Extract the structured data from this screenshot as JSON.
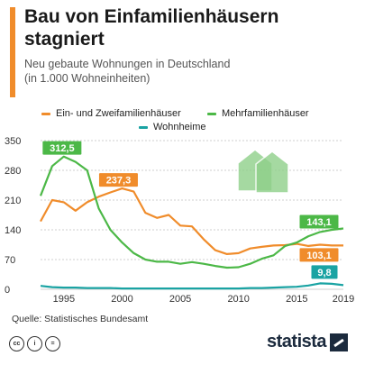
{
  "header": {
    "title": "Bau von Einfamilienhäusern stagniert",
    "subtitle_line1": "Neu gebaute Wohnungen in Deutschland",
    "subtitle_line2": "(in 1.000 Wohneinheiten)"
  },
  "source": "Quelle: Statistisches Bundesamt",
  "brand": "statista",
  "chart_data": {
    "type": "line",
    "x": [
      1993,
      1994,
      1995,
      1996,
      1997,
      1998,
      1999,
      2000,
      2001,
      2002,
      2003,
      2004,
      2005,
      2006,
      2007,
      2008,
      2009,
      2010,
      2011,
      2012,
      2013,
      2014,
      2015,
      2016,
      2017,
      2018,
      2019
    ],
    "series": [
      {
        "name": "Ein- und Zweifamilienhäuser",
        "color": "#f08c2b",
        "values": [
          160,
          210,
          205,
          185,
          205,
          218,
          228,
          237.3,
          230,
          180,
          168,
          175,
          150,
          148,
          118,
          92,
          83,
          85,
          96,
          100,
          103,
          104,
          107,
          102,
          105,
          103,
          103.1
        ]
      },
      {
        "name": "Mehrfamilienhäuser",
        "color": "#4cb847",
        "values": [
          220,
          290,
          312.5,
          300,
          280,
          190,
          140,
          110,
          85,
          70,
          65,
          65,
          60,
          64,
          60,
          55,
          51,
          52,
          60,
          72,
          80,
          102,
          110,
          125,
          135,
          140,
          143.1
        ]
      },
      {
        "name": "Wohnheime",
        "color": "#1aa3a3",
        "values": [
          8,
          5,
          4,
          4,
          3,
          3,
          3,
          2,
          2,
          2,
          2,
          2,
          2,
          2,
          2,
          2,
          2,
          2,
          3,
          3,
          4,
          5,
          6,
          9,
          14,
          13,
          9.8
        ]
      }
    ],
    "xticks": [
      1995,
      2000,
      2005,
      2010,
      2015,
      2019
    ],
    "yticks": [
      0,
      70,
      140,
      210,
      280,
      350
    ],
    "ylim": [
      0,
      350
    ],
    "xlim": [
      1993,
      2019
    ],
    "grid": "horizontal",
    "legend_position": "top",
    "annotations": [
      {
        "label": "312,5",
        "series": 1,
        "x": 1995
      },
      {
        "label": "237,3",
        "series": 0,
        "x": 2000
      },
      {
        "label": "143,1",
        "series": 1,
        "x": 2019
      },
      {
        "label": "103,1",
        "series": 0,
        "x": 2019
      },
      {
        "label": "9,8",
        "series": 2,
        "x": 2019
      }
    ]
  }
}
